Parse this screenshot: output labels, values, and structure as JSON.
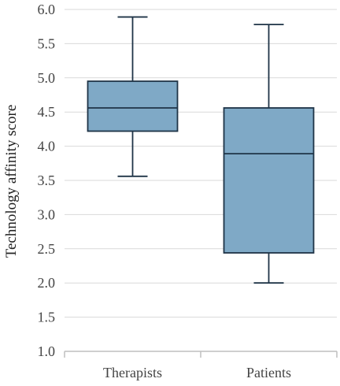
{
  "chart_data": {
    "type": "box",
    "title": "",
    "xlabel": "",
    "ylabel": "Technology affinity score",
    "ylim": [
      1.0,
      6.0
    ],
    "yticks": [
      "1.0",
      "1.5",
      "2.0",
      "2.5",
      "3.0",
      "3.5",
      "4.0",
      "4.5",
      "5.0",
      "5.5",
      "6.0"
    ],
    "grid": true,
    "legend": "none",
    "categories": [
      "Therapists",
      "Patients"
    ],
    "boxes": [
      {
        "category": "Therapists",
        "min": 3.56,
        "q1": 4.22,
        "median": 4.56,
        "q3": 4.95,
        "max": 5.89
      },
      {
        "category": "Patients",
        "min": 2.0,
        "q1": 2.44,
        "median": 3.89,
        "q3": 4.56,
        "max": 5.78
      }
    ],
    "colors": {
      "box_fill": "#7fa9c6",
      "box_stroke": "#1f3447",
      "gridline": "#d9d9d9",
      "axis": "#bfbfbf"
    }
  }
}
